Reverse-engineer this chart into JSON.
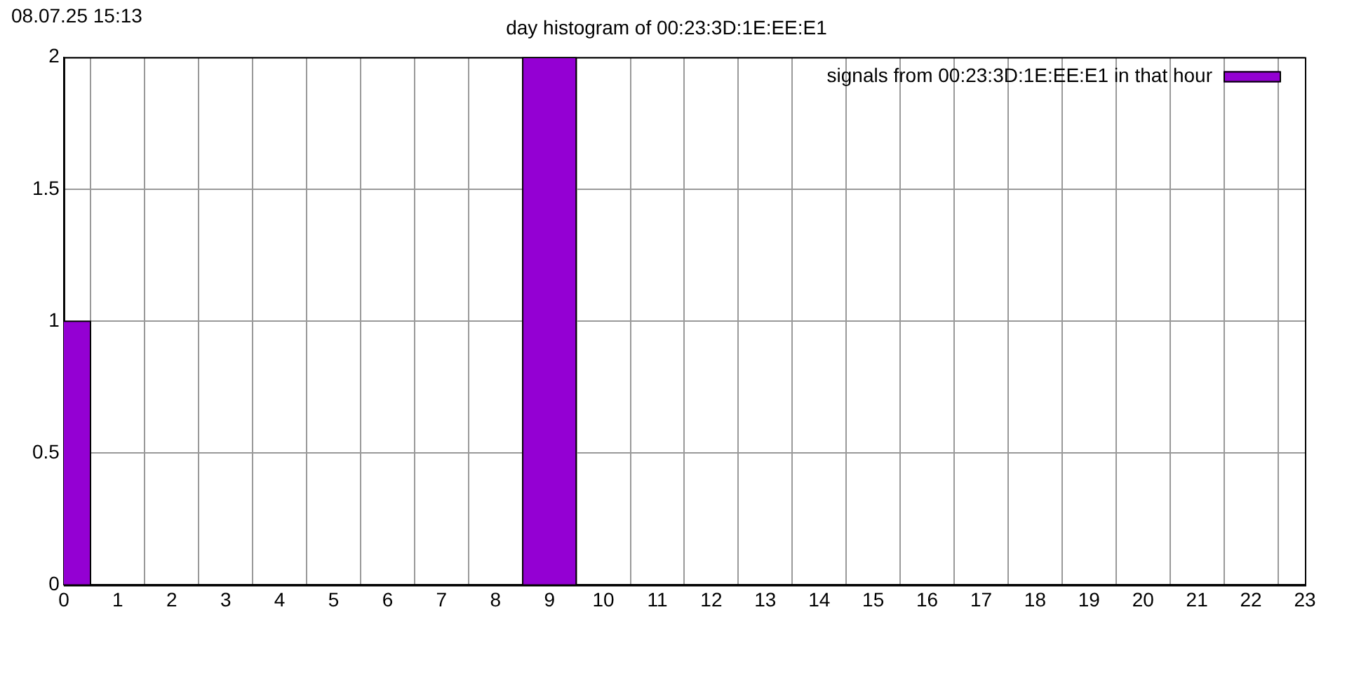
{
  "chart_data": {
    "type": "bar",
    "title": "day histogram of 00:23:3D:1E:EE:E1",
    "annotations": [
      "08.07.25 15:13"
    ],
    "x": [
      0,
      1,
      2,
      3,
      4,
      5,
      6,
      7,
      8,
      9,
      10,
      11,
      12,
      13,
      14,
      15,
      16,
      17,
      18,
      19,
      20,
      21,
      22,
      23
    ],
    "series": [
      {
        "name": "signals from 00:23:3D:1E:EE:E1 in that hour",
        "color": "#9400d3",
        "values": [
          1,
          0,
          0,
          0,
          0,
          0,
          0,
          0,
          0,
          2,
          0,
          0,
          0,
          0,
          0,
          0,
          0,
          0,
          0,
          0,
          0,
          0,
          0,
          0
        ]
      }
    ],
    "xlim": [
      0,
      23
    ],
    "xticks": [
      0,
      1,
      2,
      3,
      4,
      5,
      6,
      7,
      8,
      9,
      10,
      11,
      12,
      13,
      14,
      15,
      16,
      17,
      18,
      19,
      20,
      21,
      22,
      23
    ],
    "ylim": [
      0,
      2
    ],
    "yticks": [
      0,
      0.5,
      1,
      1.5,
      2
    ],
    "grid": true,
    "legend": "top right"
  }
}
